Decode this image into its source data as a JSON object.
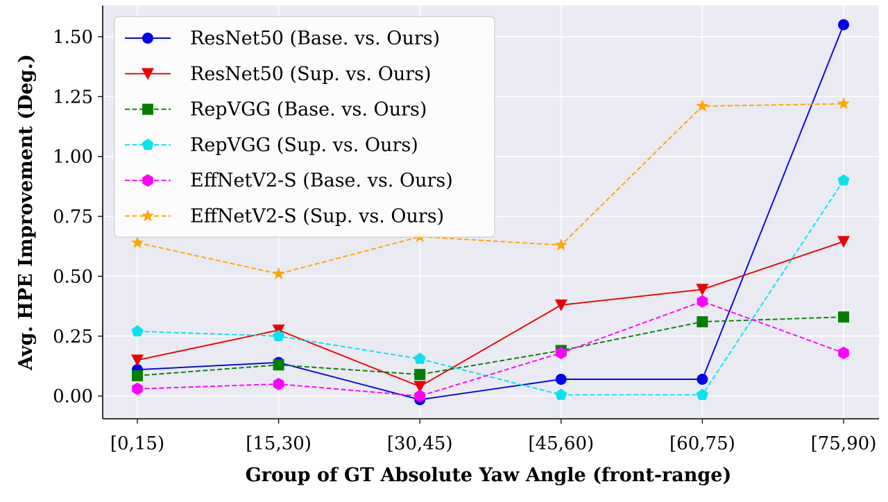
{
  "chart_data": {
    "type": "line",
    "title": "",
    "xlabel": "Group of GT Absolute Yaw Angle (front-range)",
    "ylabel": "Avg. HPE Improvement (Deg.)",
    "categories": [
      "[0,15)",
      "[15,30)",
      "[30,45)",
      "[45,60)",
      "[60,75)",
      "[75,90)"
    ],
    "ylim": [
      -0.095,
      1.63
    ],
    "yticks": [
      0.0,
      0.25,
      0.5,
      0.75,
      1.0,
      1.25,
      1.5
    ],
    "ytick_labels": [
      "0.00",
      "0.25",
      "0.50",
      "0.75",
      "1.00",
      "1.25",
      "1.50"
    ],
    "grid": true,
    "legend_position": "top-left",
    "series": [
      {
        "name": "ResNet50 (Base. vs. Ours)",
        "color": "#0000ee",
        "dash": "solid",
        "marker": "circle",
        "values": [
          0.11,
          0.14,
          -0.015,
          0.07,
          0.07,
          1.55
        ]
      },
      {
        "name": "ResNet50 (Sup. vs. Ours)",
        "color": "#ee0000",
        "dash": "solid",
        "marker": "triangle-down",
        "values": [
          0.15,
          0.275,
          0.04,
          0.38,
          0.445,
          0.645
        ]
      },
      {
        "name": "RepVGG (Base. vs. Ours)",
        "color": "#007f00",
        "dash": "dashed",
        "marker": "square",
        "values": [
          0.085,
          0.13,
          0.09,
          0.19,
          0.31,
          0.33
        ]
      },
      {
        "name": "RepVGG (Sup. vs. Ours)",
        "color": "#00e5ee",
        "dash": "dashed",
        "marker": "pentagon",
        "values": [
          0.27,
          0.25,
          0.155,
          0.005,
          0.005,
          0.9
        ]
      },
      {
        "name": "EffNetV2-S (Base. vs. Ours)",
        "color": "#ff00ff",
        "dash": "dashed",
        "marker": "hexagon",
        "values": [
          0.03,
          0.05,
          0.0,
          0.18,
          0.395,
          0.18
        ]
      },
      {
        "name": "EffNetV2-S (Sup. vs. Ours)",
        "color": "#ffa500",
        "dash": "dashed",
        "marker": "star",
        "values": [
          0.64,
          0.51,
          0.665,
          0.63,
          1.21,
          1.22
        ]
      }
    ]
  }
}
